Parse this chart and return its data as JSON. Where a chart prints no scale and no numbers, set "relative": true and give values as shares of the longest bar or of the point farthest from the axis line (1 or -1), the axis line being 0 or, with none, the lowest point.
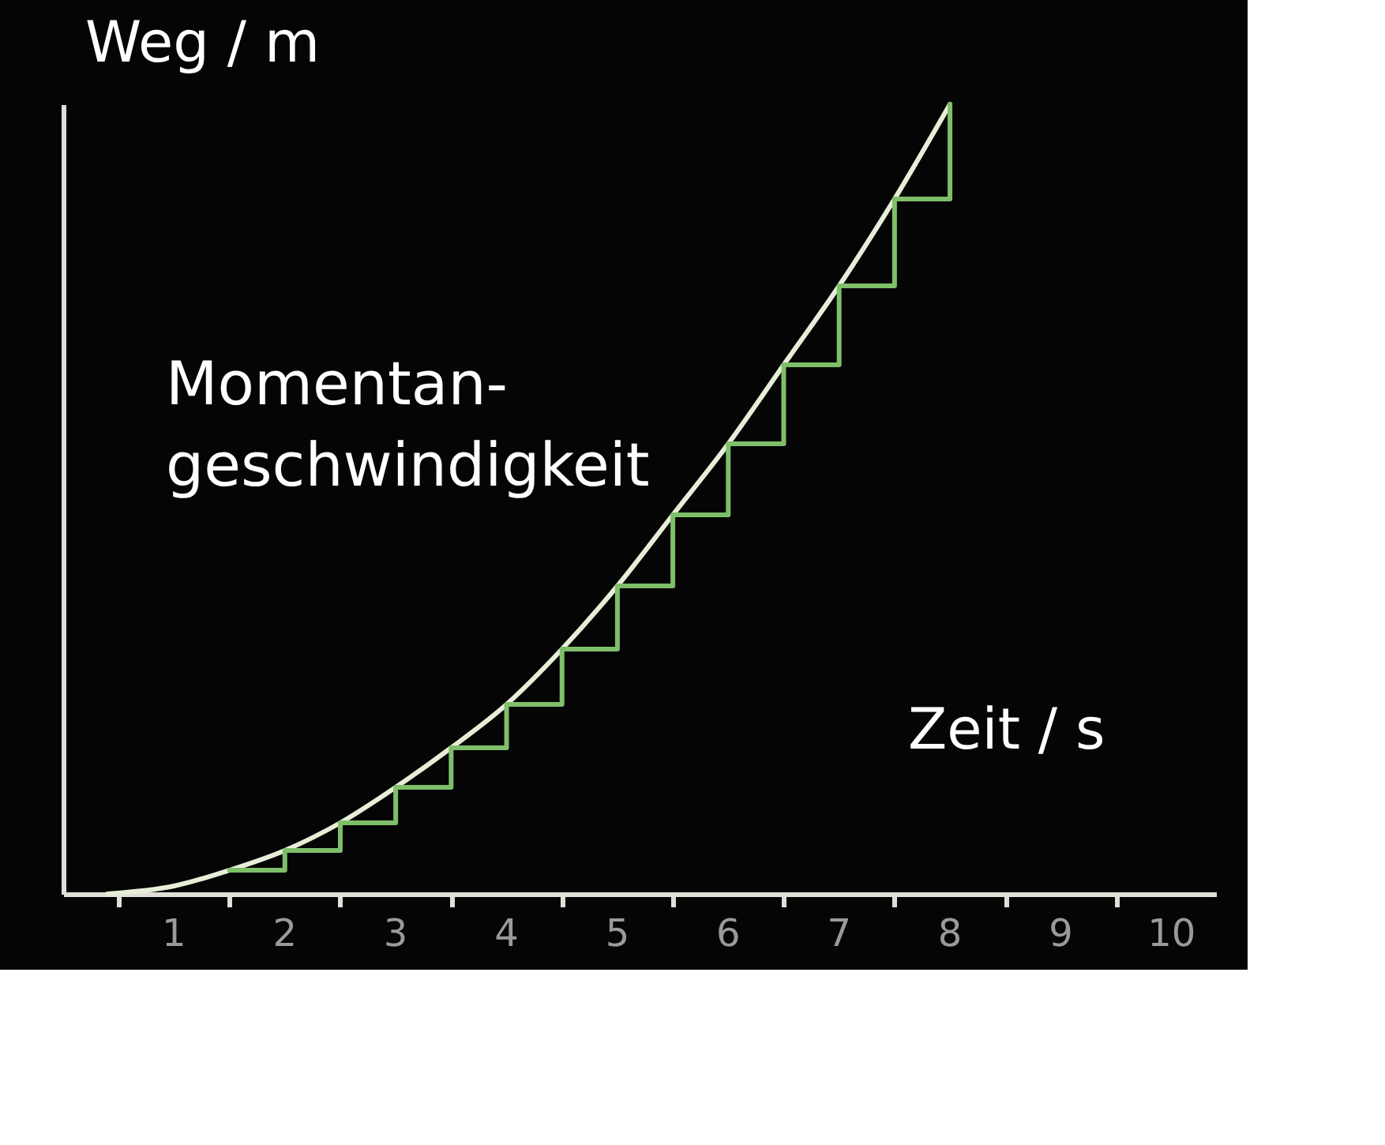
{
  "chart_data": {
    "type": "line",
    "relative": true,
    "xlabel": "Zeit / s",
    "ylabel": "Weg / m",
    "annotations": [
      "Momentan-\ngeschwindigkeit"
    ],
    "xlim": [
      0,
      10.4
    ],
    "xticks": [
      {
        "value": 0.5,
        "label": null
      },
      1,
      {
        "value": 1.5,
        "label": null
      },
      2,
      {
        "value": 2.5,
        "label": null
      },
      3,
      {
        "value": 3.5,
        "label": null
      },
      4,
      {
        "value": 4.5,
        "label": null
      },
      5,
      {
        "value": 5.5,
        "label": null
      },
      6,
      {
        "value": 6.5,
        "label": null
      },
      7,
      {
        "value": 7.5,
        "label": null
      },
      8,
      {
        "value": 8.5,
        "label": null
      },
      9,
      {
        "value": 9.5,
        "label": null
      },
      10
    ],
    "series": [
      {
        "color": "#e6eed8",
        "x": [
          0.4,
          1,
          1.5,
          2,
          2.5,
          3,
          3.5,
          4,
          4.5,
          5,
          5.5,
          6,
          6.5,
          7,
          7.5,
          8
        ],
        "values": [
          0,
          0.01,
          0.03,
          0.055,
          0.09,
          0.135,
          0.185,
          0.24,
          0.31,
          0.39,
          0.48,
          0.57,
          0.67,
          0.77,
          0.88,
          1
        ]
      },
      {
        "type": "step",
        "color": "#7fbf6a",
        "x": [
          1.5,
          2,
          2.5,
          3,
          3.5,
          4,
          4.5,
          5,
          5.5,
          6,
          6.5,
          7,
          7.5,
          8
        ],
        "values": [
          0.03,
          0.055,
          0.09,
          0.135,
          0.185,
          0.24,
          0.31,
          0.39,
          0.48,
          0.57,
          0.67,
          0.77,
          0.88,
          1
        ]
      }
    ]
  }
}
